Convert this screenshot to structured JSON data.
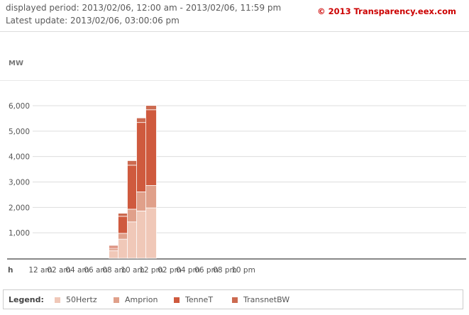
{
  "header": {
    "period": "displayed period: 2013/02/06, 12:00 am - 2013/02/06, 11:59 pm",
    "latest_update": "Latest update: 2013/02/06, 03:00:06 pm",
    "copyright": "© 2013 Transparency.eex.com"
  },
  "legend": {
    "title": "Legend:"
  },
  "colors": {
    "50Hertz": "#f0c8b8",
    "Amprion": "#e0a08a",
    "TenneT": "#cf5a3e",
    "TransnetBW": "#cc6a50",
    "gridline": "#dddddd",
    "axis": "#888888",
    "copyright": "#cc0000"
  },
  "chart_data": {
    "type": "bar",
    "stacked": true,
    "ylabel": "MW",
    "xlabel": "h",
    "ylim": [
      0,
      6000
    ],
    "yticks": [
      1000,
      2000,
      3000,
      4000,
      5000,
      6000
    ],
    "ytick_labels": [
      "1,000",
      "2,000",
      "3,000",
      "4,000",
      "5,000",
      "6,000"
    ],
    "xtick_labels": [
      "12 am",
      "02 am",
      "04 am",
      "06 am",
      "08 am",
      "10 am",
      "12 pm",
      "02 pm",
      "04 pm",
      "06 pm",
      "08 pm",
      "10 pm"
    ],
    "categories": [
      "08 am",
      "09 am",
      "10 am",
      "11 am",
      "12 pm"
    ],
    "series": [
      {
        "name": "50Hertz",
        "values": [
          300,
          750,
          1430,
          1860,
          1980
        ]
      },
      {
        "name": "Amprion",
        "values": [
          80,
          230,
          500,
          750,
          880
        ]
      },
      {
        "name": "TenneT",
        "values": [
          60,
          670,
          1730,
          2730,
          2980
        ]
      },
      {
        "name": "TransnetBW",
        "values": [
          60,
          120,
          180,
          180,
          170
        ]
      }
    ],
    "grid": true,
    "legend_position": "bottom"
  }
}
